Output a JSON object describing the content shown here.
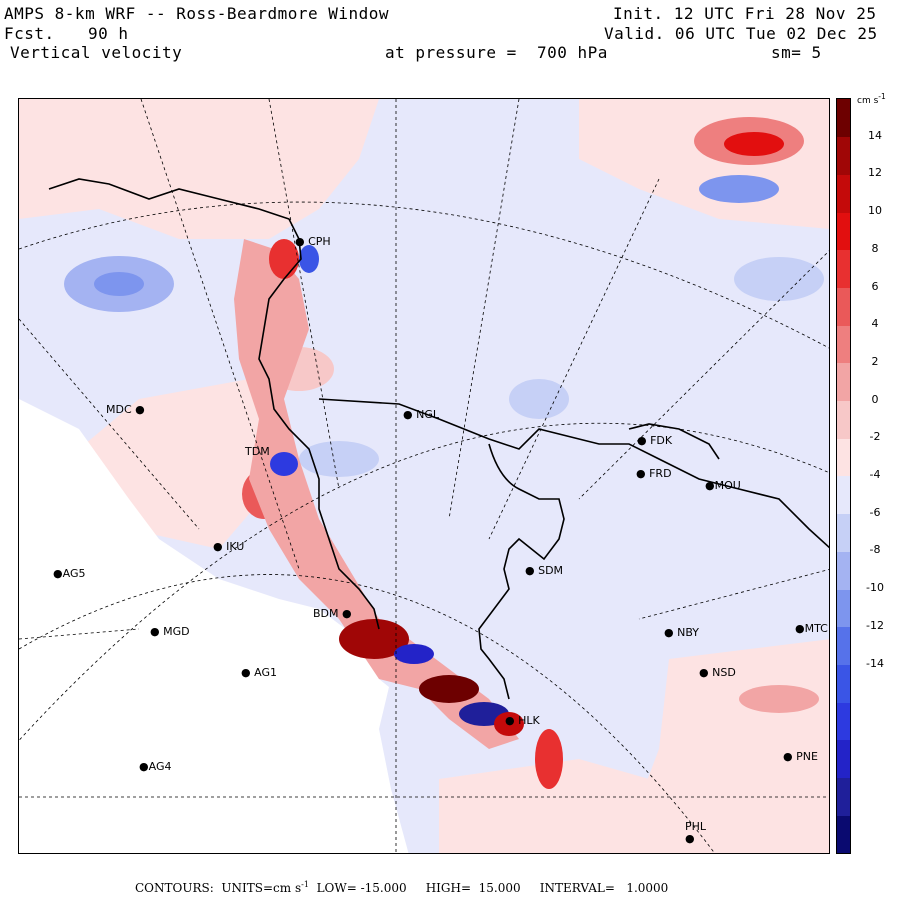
{
  "header": {
    "model_title": "AMPS 8-km WRF -- Ross-Beardmore Window",
    "forecast_label": "Fcst.",
    "forecast_hours": "90 h",
    "variable": "Vertical velocity",
    "pressure_text": "at pressure =  700 hPa",
    "init_time": "Init. 12 UTC Fri 28 Nov 25",
    "valid_time": "Valid. 06 UTC Tue 02 Dec 25",
    "smoothing": "sm= 5"
  },
  "map": {
    "field_palette": {
      "positive": "#e8302c",
      "negative": "#3c4cd8",
      "neutral_pos": "#fde3e3",
      "neutral_neg": "#e6e8fb"
    },
    "stations": [
      {
        "id": "CPH"
      },
      {
        "id": "MDC"
      },
      {
        "id": "TDM"
      },
      {
        "id": "IKU"
      },
      {
        "id": "AG5"
      },
      {
        "id": "MGD"
      },
      {
        "id": "AG1"
      },
      {
        "id": "AG4"
      },
      {
        "id": "BDM"
      },
      {
        "id": "NGL"
      },
      {
        "id": "SDM"
      },
      {
        "id": "FDK"
      },
      {
        "id": "FRD"
      },
      {
        "id": "MOU"
      },
      {
        "id": "NBY"
      },
      {
        "id": "NSD"
      },
      {
        "id": "MTC"
      },
      {
        "id": "HLK"
      },
      {
        "id": "PNE"
      },
      {
        "id": "PHL"
      }
    ]
  },
  "colorbar": {
    "unit": "cm s",
    "unit_exponent": "-1",
    "tick_labels": [
      "14",
      "12",
      "10",
      "8",
      "6",
      "4",
      "2",
      "0",
      "-2",
      "-4",
      "-6",
      "-8",
      "-10",
      "-12",
      "-14"
    ],
    "colors": [
      "#0a0a70",
      "#1f1f9a",
      "#2323c8",
      "#2d3ae0",
      "#3a55e6",
      "#5672ea",
      "#7d95ee",
      "#a4b3f2",
      "#c6d0f6",
      "#e6e8fb",
      "#fde3e3",
      "#f7c8c8",
      "#f2a5a5",
      "#ee7f7f",
      "#ea5959",
      "#e83030",
      "#e20f0f",
      "#c40a0a",
      "#a00606",
      "#6d0000"
    ]
  },
  "footer": {
    "contours_label": "CONTOURS:",
    "units_text": "UNITS=cm s",
    "units_exp": "-1",
    "low_text": "LOW= -15.000",
    "high_text": "HIGH=  15.000",
    "interval_text": "INTERVAL=   1.0000"
  }
}
